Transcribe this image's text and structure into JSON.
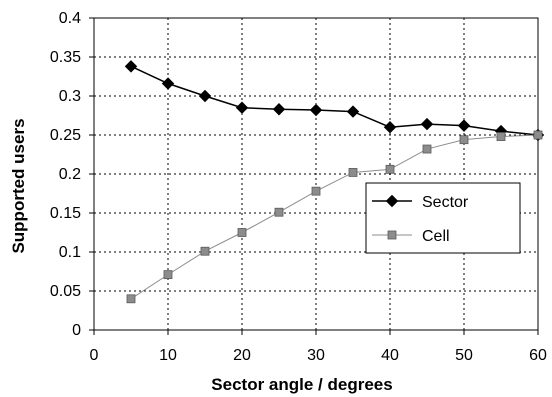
{
  "chart_data": {
    "type": "line",
    "xlabel": "Sector angle / degrees",
    "ylabel": "Supported users",
    "xlim": [
      0,
      60
    ],
    "ylim": [
      0,
      0.4
    ],
    "x_ticks": [
      "0",
      "10",
      "20",
      "30",
      "40",
      "50",
      "60"
    ],
    "y_ticks": [
      "0",
      "0.05",
      "0.1",
      "0.15",
      "0.2",
      "0.25",
      "0.3",
      "0.35",
      "0.4"
    ],
    "grid": true,
    "legend_position": "center-right",
    "x": [
      5,
      10,
      15,
      20,
      25,
      30,
      35,
      40,
      45,
      50,
      55,
      60
    ],
    "series": [
      {
        "name": "Sector",
        "marker": "diamond",
        "color": "#000000",
        "values": [
          0.338,
          0.316,
          0.3,
          0.285,
          0.283,
          0.282,
          0.28,
          0.26,
          0.264,
          0.262,
          0.255,
          0.25
        ]
      },
      {
        "name": "Cell",
        "marker": "square",
        "color": "#8c8c8c",
        "values": [
          0.04,
          0.071,
          0.101,
          0.125,
          0.151,
          0.178,
          0.202,
          0.206,
          0.232,
          0.244,
          0.248,
          0.25
        ]
      }
    ]
  }
}
